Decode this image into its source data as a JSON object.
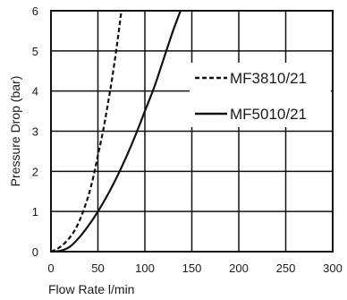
{
  "chart_data": {
    "type": "line",
    "title": "",
    "xlabel": "Flow Rate l/min",
    "ylabel": "Pressure Drop (bar)",
    "xlim": [
      0,
      300
    ],
    "ylim": [
      0,
      6
    ],
    "xticks": [
      0,
      50,
      100,
      150,
      200,
      250,
      300
    ],
    "yticks": [
      0,
      1,
      2,
      3,
      4,
      5,
      6
    ],
    "grid": true,
    "legend_position": "right",
    "series": [
      {
        "name": "MF3810/21",
        "style": "dashed",
        "color": "#111111",
        "x": [
          0,
          5,
          10,
          15,
          20,
          25,
          30,
          35,
          40,
          45,
          50,
          55,
          60,
          65,
          70,
          75
        ],
        "y": [
          0,
          0.05,
          0.12,
          0.22,
          0.35,
          0.52,
          0.75,
          1.05,
          1.4,
          1.85,
          2.4,
          2.95,
          3.6,
          4.3,
          5.1,
          6.0
        ]
      },
      {
        "name": "MF5010/21",
        "style": "solid",
        "color": "#111111",
        "x": [
          0,
          10,
          20,
          30,
          40,
          50,
          60,
          70,
          80,
          90,
          100,
          110,
          120,
          130,
          138
        ],
        "y": [
          0,
          0.02,
          0.12,
          0.35,
          0.65,
          1.0,
          1.4,
          1.85,
          2.35,
          2.9,
          3.5,
          4.1,
          4.8,
          5.5,
          6.0
        ]
      }
    ]
  }
}
